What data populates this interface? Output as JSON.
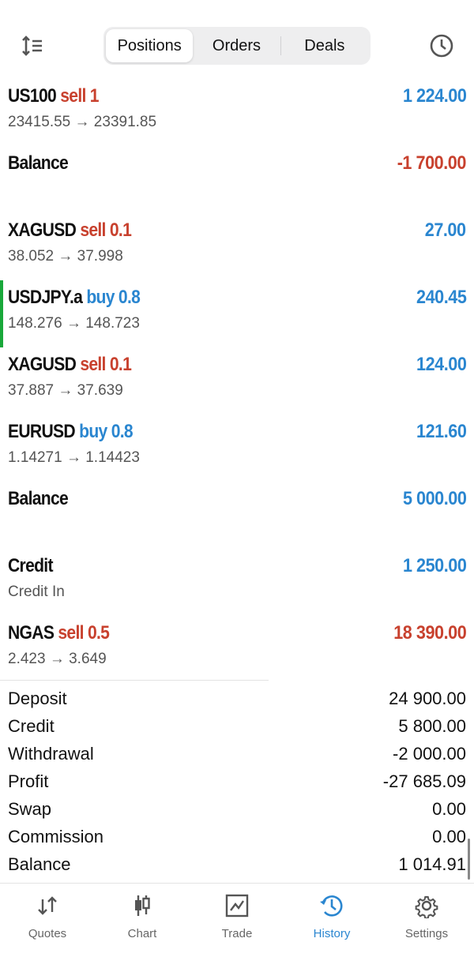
{
  "header": {
    "tabs": [
      {
        "label": "Positions",
        "active": true
      },
      {
        "label": "Orders"
      },
      {
        "label": "Deals"
      }
    ],
    "sort_icon": "sort-icon",
    "clock_icon": "clock-icon"
  },
  "rows": [
    {
      "symbol": "US100",
      "type": "sell 1",
      "type_color": "#c8412e",
      "prices": "23415.55 → 23391.85",
      "value": "1 224.00",
      "value_color": "#2a86d0"
    },
    {
      "symbol": "Balance",
      "type": "",
      "prices": "",
      "value": "-1 700.00",
      "value_color": "#c8412e"
    },
    {
      "symbol": "XAGUSD",
      "type": "sell 0.1",
      "type_color": "#c8412e",
      "prices": "38.052 → 37.998",
      "value": "27.00",
      "value_color": "#2a86d0"
    },
    {
      "symbol": "USDJPY.a",
      "type": "buy 0.8",
      "type_color": "#2a86d0",
      "prices": "148.276 → 148.723",
      "value": "240.45",
      "value_color": "#2a86d0",
      "highlighted": true
    },
    {
      "symbol": "XAGUSD",
      "type": "sell 0.1",
      "type_color": "#c8412e",
      "prices": "37.887 → 37.639",
      "value": "124.00",
      "value_color": "#2a86d0"
    },
    {
      "symbol": "EURUSD",
      "type": "buy 0.8",
      "type_color": "#2a86d0",
      "prices": "1.14271 → 1.14423",
      "value": "121.60",
      "value_color": "#2a86d0"
    },
    {
      "symbol": "Balance",
      "type": "",
      "prices": "",
      "value": "5 000.00",
      "value_color": "#2a86d0"
    },
    {
      "symbol": "Credit",
      "type": "",
      "prices": "Credit In",
      "value": "1 250.00",
      "value_color": "#2a86d0"
    },
    {
      "symbol": "NGAS",
      "type": "sell 0.5",
      "type_color": "#c8412e",
      "prices": "2.423 → 3.649",
      "value": "18 390.00",
      "value_color": "#c8412e"
    }
  ],
  "summary": [
    {
      "label": "Deposit",
      "value": "24 900.00"
    },
    {
      "label": "Credit",
      "value": "5 800.00"
    },
    {
      "label": "Withdrawal",
      "value": "-2 000.00"
    },
    {
      "label": "Profit",
      "value": "-27 685.09"
    },
    {
      "label": "Swap",
      "value": "0.00"
    },
    {
      "label": "Commission",
      "value": "0.00"
    },
    {
      "label": "Balance",
      "value": "1 014.91"
    }
  ],
  "nav": [
    {
      "label": "Quotes"
    },
    {
      "label": "Chart"
    },
    {
      "label": "Trade"
    },
    {
      "label": "History",
      "active": true
    },
    {
      "label": "Settings"
    }
  ],
  "colors": {
    "accent": "#2a86d0",
    "loss": "#c8412e",
    "marker": "#19a83a"
  }
}
